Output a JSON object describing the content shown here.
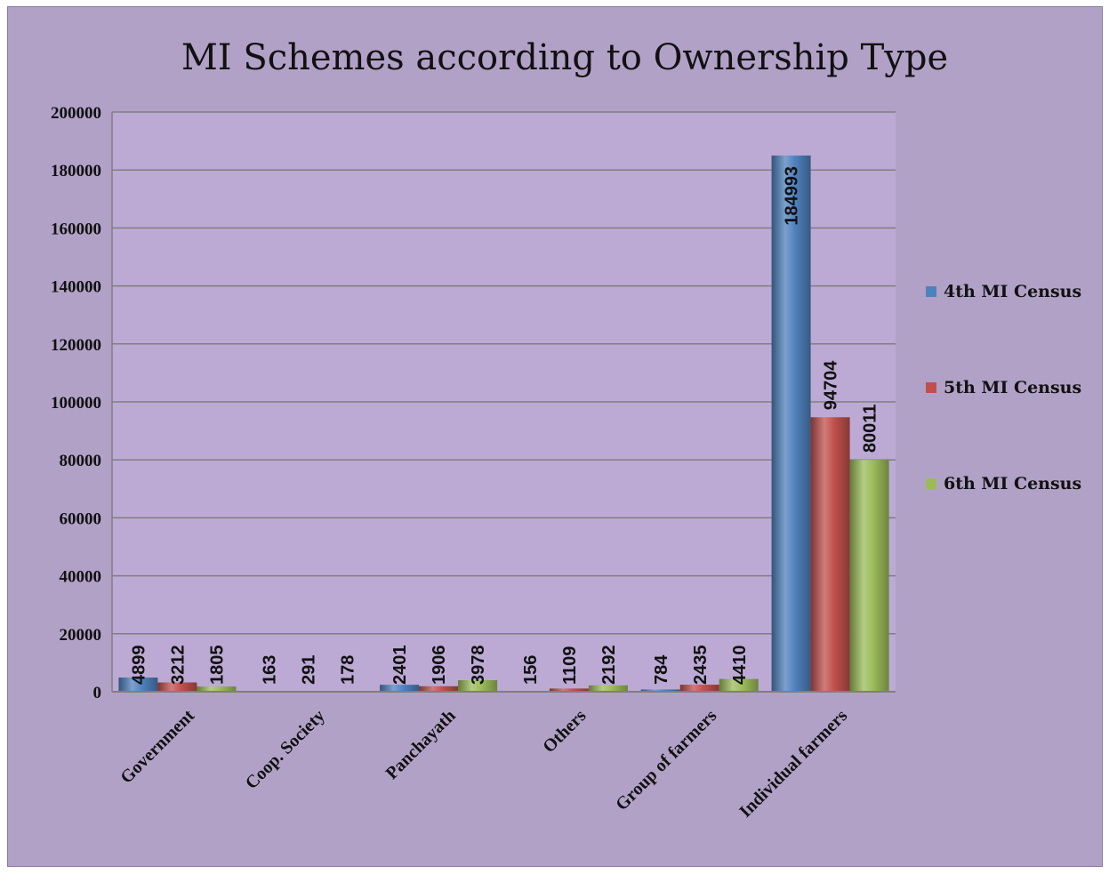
{
  "chart_data": {
    "type": "bar",
    "title": "MI Schemes according to Ownership Type",
    "categories": [
      "Government",
      "Coop. Society",
      "Panchayath",
      "Others",
      "Group of farmers",
      "Individual farmers"
    ],
    "series": [
      {
        "name": "4th MI Census",
        "color": "#4f81bd",
        "values": [
          4899,
          163,
          2401,
          156,
          784,
          184993
        ]
      },
      {
        "name": "5th MI Census",
        "color": "#c0504d",
        "values": [
          3212,
          291,
          1906,
          1109,
          2435,
          94704
        ]
      },
      {
        "name": "6th MI Census",
        "color": "#9bbb59",
        "values": [
          1805,
          178,
          3978,
          2192,
          4410,
          80011
        ]
      }
    ],
    "ylim": [
      0,
      200000
    ],
    "yticks": [
      0,
      20000,
      40000,
      60000,
      80000,
      100000,
      120000,
      140000,
      160000,
      180000,
      200000
    ],
    "grid": true,
    "legend_position": "right",
    "data_labels": true
  }
}
